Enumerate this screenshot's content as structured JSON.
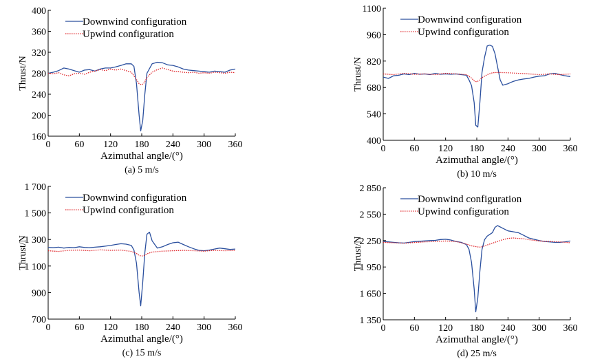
{
  "colors": {
    "downwind": "#2a4f9e",
    "upwind": "#e0262b",
    "axis": "#000000"
  },
  "chart_data": [
    {
      "type": "line",
      "caption": "(a) 5 m/s",
      "xlabel": "Azimuthal angle/(°)",
      "ylabel": "Thrust/N",
      "xlim": [
        0,
        360
      ],
      "ylim": [
        160,
        400
      ],
      "xticks": [
        0,
        60,
        120,
        180,
        240,
        300,
        360
      ],
      "yticks": [
        160,
        200,
        240,
        280,
        320,
        360,
        400
      ],
      "ytick_labels": [
        "160",
        "200",
        "240",
        "280",
        "320",
        "360",
        "400"
      ],
      "legend": [
        "Downwind configuration",
        "Upwind configuration"
      ],
      "series": [
        {
          "name": "Downwind configuration",
          "style": "solid",
          "x": [
            0,
            10,
            20,
            30,
            40,
            50,
            60,
            70,
            80,
            90,
            100,
            110,
            120,
            130,
            140,
            150,
            160,
            165,
            170,
            175,
            178,
            182,
            186,
            190,
            200,
            210,
            220,
            230,
            240,
            250,
            260,
            270,
            280,
            290,
            300,
            310,
            320,
            330,
            340,
            350,
            360
          ],
          "y": [
            280,
            282,
            285,
            290,
            288,
            285,
            282,
            286,
            287,
            284,
            288,
            290,
            290,
            292,
            295,
            298,
            298,
            293,
            260,
            200,
            170,
            190,
            240,
            280,
            298,
            301,
            300,
            296,
            295,
            292,
            288,
            286,
            285,
            284,
            283,
            282,
            284,
            283,
            282,
            286,
            288
          ]
        },
        {
          "name": "Upwind configuration",
          "style": "dotted",
          "x": [
            0,
            10,
            20,
            30,
            40,
            50,
            60,
            70,
            80,
            90,
            100,
            110,
            120,
            130,
            140,
            150,
            160,
            170,
            175,
            180,
            185,
            190,
            200,
            210,
            220,
            230,
            240,
            250,
            260,
            270,
            280,
            290,
            300,
            310,
            320,
            330,
            340,
            350,
            360
          ],
          "y": [
            280,
            279,
            281,
            277,
            275,
            279,
            280,
            278,
            282,
            284,
            287,
            285,
            288,
            286,
            288,
            285,
            282,
            268,
            260,
            258,
            262,
            272,
            282,
            287,
            290,
            287,
            284,
            283,
            282,
            281,
            282,
            280,
            281,
            280,
            282,
            281,
            280,
            282,
            281
          ]
        }
      ]
    },
    {
      "type": "line",
      "caption": "(b) 10 m/s",
      "xlabel": "Azimuthal angle/(°)",
      "ylabel": "Thrust/N",
      "xlim": [
        0,
        360
      ],
      "ylim": [
        400,
        1100
      ],
      "xticks": [
        0,
        60,
        120,
        180,
        240,
        300,
        360
      ],
      "yticks": [
        400,
        540,
        680,
        820,
        960,
        1100
      ],
      "ytick_labels": [
        "400",
        "540",
        "680",
        "820",
        "960",
        "1100"
      ],
      "legend": [
        "Downwind configuration",
        "Upwind configuration"
      ],
      "series": [
        {
          "name": "Downwind configuration",
          "style": "solid",
          "x": [
            0,
            10,
            20,
            30,
            40,
            50,
            60,
            70,
            80,
            90,
            100,
            110,
            120,
            130,
            140,
            150,
            160,
            165,
            170,
            175,
            178,
            182,
            186,
            190,
            195,
            200,
            205,
            210,
            215,
            220,
            225,
            230,
            240,
            250,
            260,
            270,
            280,
            290,
            300,
            310,
            320,
            330,
            340,
            350,
            360
          ],
          "y": [
            735,
            728,
            742,
            745,
            752,
            748,
            755,
            750,
            752,
            748,
            755,
            750,
            752,
            750,
            752,
            748,
            745,
            720,
            690,
            600,
            480,
            470,
            600,
            760,
            840,
            900,
            905,
            898,
            860,
            790,
            720,
            692,
            700,
            712,
            720,
            725,
            728,
            735,
            740,
            742,
            752,
            755,
            748,
            742,
            738
          ]
        },
        {
          "name": "Upwind configuration",
          "style": "dotted",
          "x": [
            0,
            20,
            40,
            60,
            80,
            100,
            120,
            140,
            160,
            170,
            175,
            180,
            185,
            190,
            200,
            210,
            220,
            240,
            260,
            280,
            300,
            320,
            340,
            360
          ],
          "y": [
            752,
            748,
            755,
            750,
            752,
            748,
            755,
            752,
            748,
            730,
            715,
            710,
            718,
            732,
            748,
            758,
            760,
            758,
            755,
            752,
            748,
            752,
            748,
            752
          ]
        }
      ]
    },
    {
      "type": "line",
      "caption": "(c) 15 m/s",
      "xlabel": "Azimuthal angle/(°)",
      "ylabel": "Thrust/N",
      "xlim": [
        0,
        360
      ],
      "ylim": [
        700,
        1700
      ],
      "xticks": [
        0,
        60,
        120,
        180,
        240,
        300,
        360
      ],
      "yticks": [
        700,
        900,
        1100,
        1300,
        1500,
        1700
      ],
      "ytick_labels": [
        "700",
        "900",
        "1 100",
        "1 300",
        "1 500",
        "1 700"
      ],
      "legend": [
        "Downwind configuration",
        "Upwind configuration"
      ],
      "series": [
        {
          "name": "Downwind configuration",
          "style": "solid",
          "x": [
            0,
            10,
            20,
            30,
            40,
            50,
            60,
            70,
            80,
            90,
            100,
            110,
            120,
            130,
            140,
            150,
            160,
            165,
            170,
            175,
            178,
            182,
            186,
            190,
            195,
            200,
            210,
            220,
            230,
            240,
            250,
            260,
            270,
            280,
            290,
            300,
            310,
            320,
            330,
            340,
            350,
            360
          ],
          "y": [
            1240,
            1238,
            1242,
            1235,
            1240,
            1238,
            1245,
            1240,
            1238,
            1242,
            1245,
            1250,
            1255,
            1262,
            1268,
            1265,
            1255,
            1220,
            1120,
            900,
            800,
            980,
            1200,
            1340,
            1355,
            1290,
            1235,
            1245,
            1262,
            1275,
            1280,
            1262,
            1245,
            1230,
            1218,
            1215,
            1220,
            1228,
            1235,
            1230,
            1225,
            1228
          ]
        },
        {
          "name": "Upwind configuration",
          "style": "dotted",
          "x": [
            0,
            20,
            40,
            60,
            80,
            100,
            120,
            140,
            160,
            170,
            175,
            180,
            185,
            190,
            200,
            220,
            240,
            260,
            280,
            300,
            320,
            340,
            360
          ],
          "y": [
            1215,
            1210,
            1218,
            1220,
            1215,
            1222,
            1218,
            1220,
            1210,
            1195,
            1180,
            1175,
            1180,
            1192,
            1205,
            1212,
            1215,
            1218,
            1215,
            1212,
            1218,
            1215,
            1218
          ]
        }
      ]
    },
    {
      "type": "line",
      "caption": "(d) 25 m/s",
      "xlabel": "Azimuthal angle/(°)",
      "ylabel": "Thrust/N",
      "xlim": [
        0,
        360
      ],
      "ylim": [
        1350,
        2850
      ],
      "xticks": [
        0,
        60,
        120,
        180,
        240,
        300,
        360
      ],
      "yticks": [
        1350,
        1650,
        1950,
        2250,
        2550,
        2850
      ],
      "ytick_labels": [
        "1 350",
        "1 650",
        "1 950",
        "2 250",
        "2 550",
        "2 850"
      ],
      "legend": [
        "Downwind configuration",
        "Upwind configuration"
      ],
      "series": [
        {
          "name": "Downwind configuration",
          "style": "solid",
          "x": [
            0,
            10,
            20,
            30,
            40,
            50,
            60,
            70,
            80,
            90,
            100,
            110,
            120,
            130,
            140,
            150,
            160,
            165,
            170,
            175,
            178,
            182,
            186,
            190,
            195,
            200,
            205,
            210,
            215,
            220,
            230,
            240,
            250,
            260,
            270,
            280,
            290,
            300,
            310,
            320,
            330,
            340,
            350,
            360
          ],
          "y": [
            2240,
            2235,
            2230,
            2225,
            2222,
            2230,
            2238,
            2242,
            2246,
            2250,
            2252,
            2262,
            2266,
            2256,
            2240,
            2230,
            2205,
            2150,
            2000,
            1700,
            1440,
            1600,
            1900,
            2150,
            2260,
            2300,
            2320,
            2340,
            2400,
            2420,
            2390,
            2360,
            2350,
            2340,
            2310,
            2280,
            2265,
            2250,
            2240,
            2235,
            2230,
            2230,
            2236,
            2245
          ]
        },
        {
          "name": "Upwind configuration",
          "style": "dotted",
          "x": [
            0,
            20,
            40,
            60,
            80,
            100,
            120,
            140,
            160,
            170,
            175,
            180,
            185,
            190,
            200,
            210,
            220,
            230,
            240,
            250,
            260,
            270,
            280,
            300,
            320,
            340,
            360
          ],
          "y": [
            2230,
            2225,
            2220,
            2228,
            2235,
            2240,
            2245,
            2240,
            2210,
            2190,
            2185,
            2180,
            2175,
            2180,
            2200,
            2220,
            2240,
            2260,
            2275,
            2280,
            2275,
            2270,
            2260,
            2245,
            2240,
            2235,
            2225
          ]
        }
      ]
    }
  ]
}
